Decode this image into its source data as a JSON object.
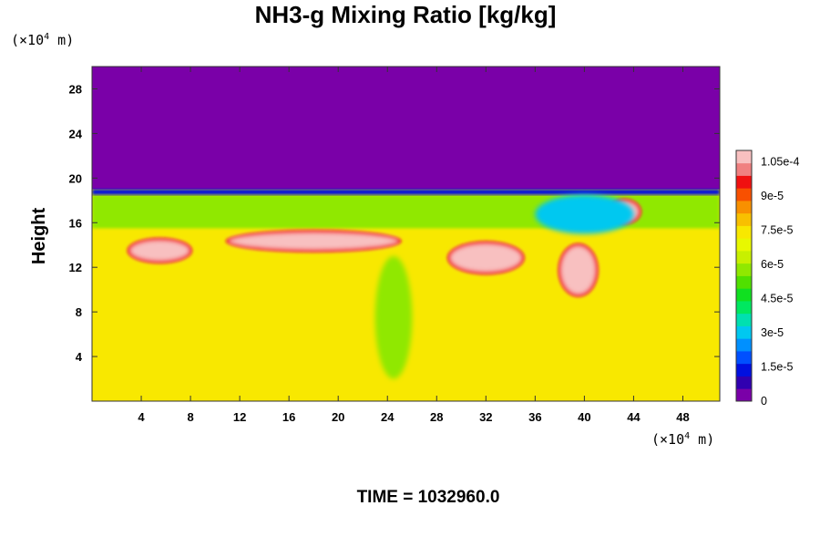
{
  "chart_data": {
    "type": "heatmap",
    "title": "NH3-g Mixing Ratio [kg/kg]",
    "xlabel": "",
    "ylabel": "Height",
    "x_unit_prefix": "(×10",
    "x_unit_exponent": "4",
    "x_unit_suffix": " m)",
    "y_unit_prefix": "(×10",
    "y_unit_exponent": "4",
    "y_unit_suffix": " m)",
    "xlim": [
      0,
      51
    ],
    "ylim": [
      0,
      30
    ],
    "x_ticks": [
      4,
      8,
      12,
      16,
      20,
      24,
      28,
      32,
      36,
      40,
      44,
      48
    ],
    "y_ticks": [
      4,
      8,
      12,
      16,
      20,
      24,
      28
    ],
    "x_tick_labels": [
      "4",
      "8",
      "12",
      "16",
      "20",
      "24",
      "28",
      "32",
      "36",
      "40",
      "44",
      "48"
    ],
    "y_tick_labels": [
      "4",
      "8",
      "12",
      "16",
      "20",
      "24",
      "28"
    ],
    "background_region_y_range": [
      0,
      19
    ],
    "background_value": 7.5e-05,
    "upper_value": 0,
    "cloud_layer_y_range": [
      15.5,
      18.5
    ],
    "features": [
      {
        "kind": "mixed-layer",
        "x_range": [
          0,
          51
        ],
        "y_range": [
          15.5,
          18.5
        ],
        "value": 6e-05
      },
      {
        "kind": "band",
        "x_range": [
          0,
          51
        ],
        "y_range": [
          18.5,
          19.0
        ],
        "value": 1.5e-05
      },
      {
        "kind": "patch",
        "x_range": [
          3,
          8
        ],
        "y_range": [
          12.5,
          14.5
        ],
        "value": 0.000105
      },
      {
        "kind": "patch",
        "x_range": [
          11,
          25
        ],
        "y_range": [
          13.5,
          15.2
        ],
        "value": 0.000105
      },
      {
        "kind": "patch",
        "x_range": [
          29,
          35
        ],
        "y_range": [
          11.5,
          14.2
        ],
        "value": 0.000105
      },
      {
        "kind": "patch",
        "x_range": [
          38,
          41
        ],
        "y_range": [
          9.5,
          14.0
        ],
        "value": 0.000105
      },
      {
        "kind": "patch",
        "x_range": [
          42,
          44.5
        ],
        "y_range": [
          16.0,
          18.0
        ],
        "value": 0.000105
      },
      {
        "kind": "patch",
        "x_range": [
          36,
          44
        ],
        "y_range": [
          15.0,
          18.5
        ],
        "value": 3e-05
      },
      {
        "kind": "plume",
        "x_range": [
          23,
          26
        ],
        "y_range": [
          2.0,
          13.0
        ],
        "value": 6e-05
      }
    ],
    "colorbar": {
      "min": 0,
      "max": 0.00011,
      "labels": [
        "1.05e-4",
        "9e-5",
        "7.5e-5",
        "6e-5",
        "4.5e-5",
        "3e-5",
        "1.5e-5",
        "0"
      ],
      "label_values": [
        0.000105,
        9e-05,
        7.5e-05,
        6e-05,
        4.5e-05,
        3e-05,
        1.5e-05,
        0
      ],
      "colors": [
        "#7a00a8",
        "#3000b0",
        "#0010e0",
        "#0050ff",
        "#0090ff",
        "#00c8f0",
        "#00e0b0",
        "#00e860",
        "#10e020",
        "#50e000",
        "#90e800",
        "#c8f000",
        "#e8f800",
        "#f8e800",
        "#f8c000",
        "#f89000",
        "#f85000",
        "#f01010",
        "#f08080",
        "#f8c0c0"
      ]
    },
    "footer": "TIME = 1032960.0"
  }
}
